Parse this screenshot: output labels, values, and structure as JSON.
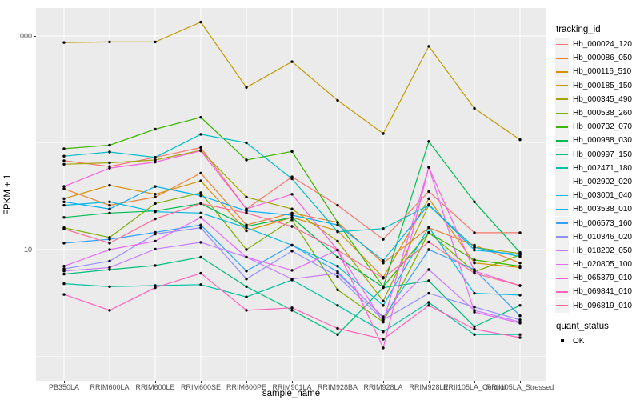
{
  "y_axis": {
    "title": "FPKM + 1",
    "ticks": [
      {
        "label": "1000",
        "value": 1000
      },
      {
        "label": "10",
        "value": 10
      }
    ]
  },
  "x_axis": {
    "title": "sample_name"
  },
  "legend": {
    "tracking_title": "tracking_id",
    "quant_title": "quant_status",
    "quant_ok_label": "OK"
  },
  "chart_data": {
    "type": "line",
    "xlabel": "sample_name",
    "ylabel": "FPKM + 1",
    "y_scale": "log10",
    "y_major_breaks": [
      10,
      1000
    ],
    "y_minor_breaks": [
      1,
      100
    ],
    "ylim_log10": [
      -0.23,
      3.26
    ],
    "legend_position": "right",
    "panel_background": "#EBEBEB",
    "grid_color": "#FFFFFF",
    "point_color": "#000000",
    "quant_status_values": [
      "OK"
    ],
    "categories": [
      "PB350LA",
      "RRIM600LA",
      "RRIM600LE",
      "RRIM600SE",
      "RRIM600PE",
      "RRIM901LA",
      "RRIM928BA",
      "RRIM928LA",
      "RRIM928LE",
      "RRII105LA_Control",
      "RRII105LA_Stressed"
    ],
    "series": [
      {
        "name": "Hb_000024_120",
        "color": "#F8766D",
        "values": [
          68,
          60,
          73,
          90,
          24,
          48,
          26,
          12.5,
          35,
          14.4,
          14.4
        ]
      },
      {
        "name": "Hb_000086_050",
        "color": "#EA8331",
        "values": [
          37,
          26,
          31,
          52,
          17,
          22,
          18,
          7.5,
          16,
          11,
          7.5
        ]
      },
      {
        "name": "Hb_000116_510",
        "color": "#D89000",
        "values": [
          30,
          40,
          33,
          44,
          15,
          20,
          15,
          5.5,
          30,
          7.5,
          6.8
        ]
      },
      {
        "name": "Hb_000185_150",
        "color": "#C09B00",
        "values": [
          870,
          880,
          880,
          1350,
          330,
          575,
          250,
          122,
          800,
          210,
          107
        ]
      },
      {
        "name": "Hb_000345_490",
        "color": "#A3A500",
        "values": [
          63,
          65,
          69,
          85,
          31,
          24,
          12,
          3.3,
          26,
          10.5,
          9.2
        ]
      },
      {
        "name": "Hb_000538_260",
        "color": "#7CAE00",
        "values": [
          16,
          13,
          27,
          34,
          10,
          19,
          4.2,
          2.1,
          14.5,
          6.2,
          8.9
        ]
      },
      {
        "name": "Hb_000732_070",
        "color": "#39B600",
        "values": [
          88,
          95,
          134,
          173,
          69,
          83,
          18,
          4.5,
          14.4,
          8,
          7
        ]
      },
      {
        "name": "Hb_000988_030",
        "color": "#00BB4E",
        "values": [
          20,
          22,
          23,
          27,
          16.5,
          20,
          8.5,
          4.45,
          103,
          28,
          9.4
        ]
      },
      {
        "name": "Hb_000997_150",
        "color": "#00BF7D",
        "values": [
          5.9,
          6.5,
          7.1,
          8.5,
          4.5,
          2.7,
          1.6,
          4.4,
          5.1,
          1.9,
          3
        ]
      },
      {
        "name": "Hb_002471_180",
        "color": "#00C1A3",
        "values": [
          4.8,
          4.5,
          4.6,
          4.7,
          3.6,
          5.2,
          3,
          1.7,
          3.2,
          1.6,
          1.6
        ]
      },
      {
        "name": "Hb_002902_020",
        "color": "#00BFC4",
        "values": [
          75,
          82,
          73,
          120,
          100,
          46,
          14.7,
          15.7,
          26,
          10.5,
          8.6
        ]
      },
      {
        "name": "Hb_003001_040",
        "color": "#00BAE0",
        "values": [
          26,
          28,
          22.6,
          22,
          16,
          11,
          7,
          3,
          16.2,
          3.9,
          3.75
        ]
      },
      {
        "name": "Hb_003538_010",
        "color": "#00B0F6",
        "values": [
          28,
          24,
          39,
          32,
          23,
          21,
          17,
          7.9,
          26.4,
          9.9,
          9
        ]
      },
      {
        "name": "Hb_006573_160",
        "color": "#35A2FF",
        "values": [
          11.5,
          12.5,
          14.5,
          17,
          6.3,
          11,
          6.2,
          2.3,
          10,
          6.5,
          2.4
        ]
      },
      {
        "name": "Hb_010346_020",
        "color": "#9590FF",
        "values": [
          6.6,
          7.8,
          14,
          16,
          5.3,
          9.7,
          5.6,
          2.2,
          3.9,
          2.9,
          2.2
        ]
      },
      {
        "name": "Hb_018202_050",
        "color": "#C77CFF",
        "values": [
          6.3,
          6.8,
          10.1,
          11.7,
          8.5,
          5.3,
          6,
          2.35,
          6.5,
          2.7,
          2.1
        ]
      },
      {
        "name": "Hb_020805_100",
        "color": "#E76BF3",
        "values": [
          7,
          10,
          12,
          20,
          8.5,
          6.4,
          9.9,
          2.1,
          59,
          2.6,
          2.05
        ]
      },
      {
        "name": "Hb_065379_010",
        "color": "#FA62DB",
        "values": [
          39,
          58,
          66,
          84,
          24,
          33,
          9.9,
          1.2,
          59,
          6.3,
          4.6
        ]
      },
      {
        "name": "Hb_069841_010",
        "color": "#FF62BC",
        "values": [
          3.8,
          2.7,
          4.4,
          6,
          2.7,
          2.85,
          1.83,
          1.45,
          3,
          1.8,
          1.5
        ]
      },
      {
        "name": "Hb_096819_010",
        "color": "#FF6A98",
        "values": [
          15.6,
          11.5,
          19.4,
          27,
          22,
          16.5,
          9.9,
          5.4,
          11.8,
          6,
          4.6
        ]
      }
    ]
  }
}
